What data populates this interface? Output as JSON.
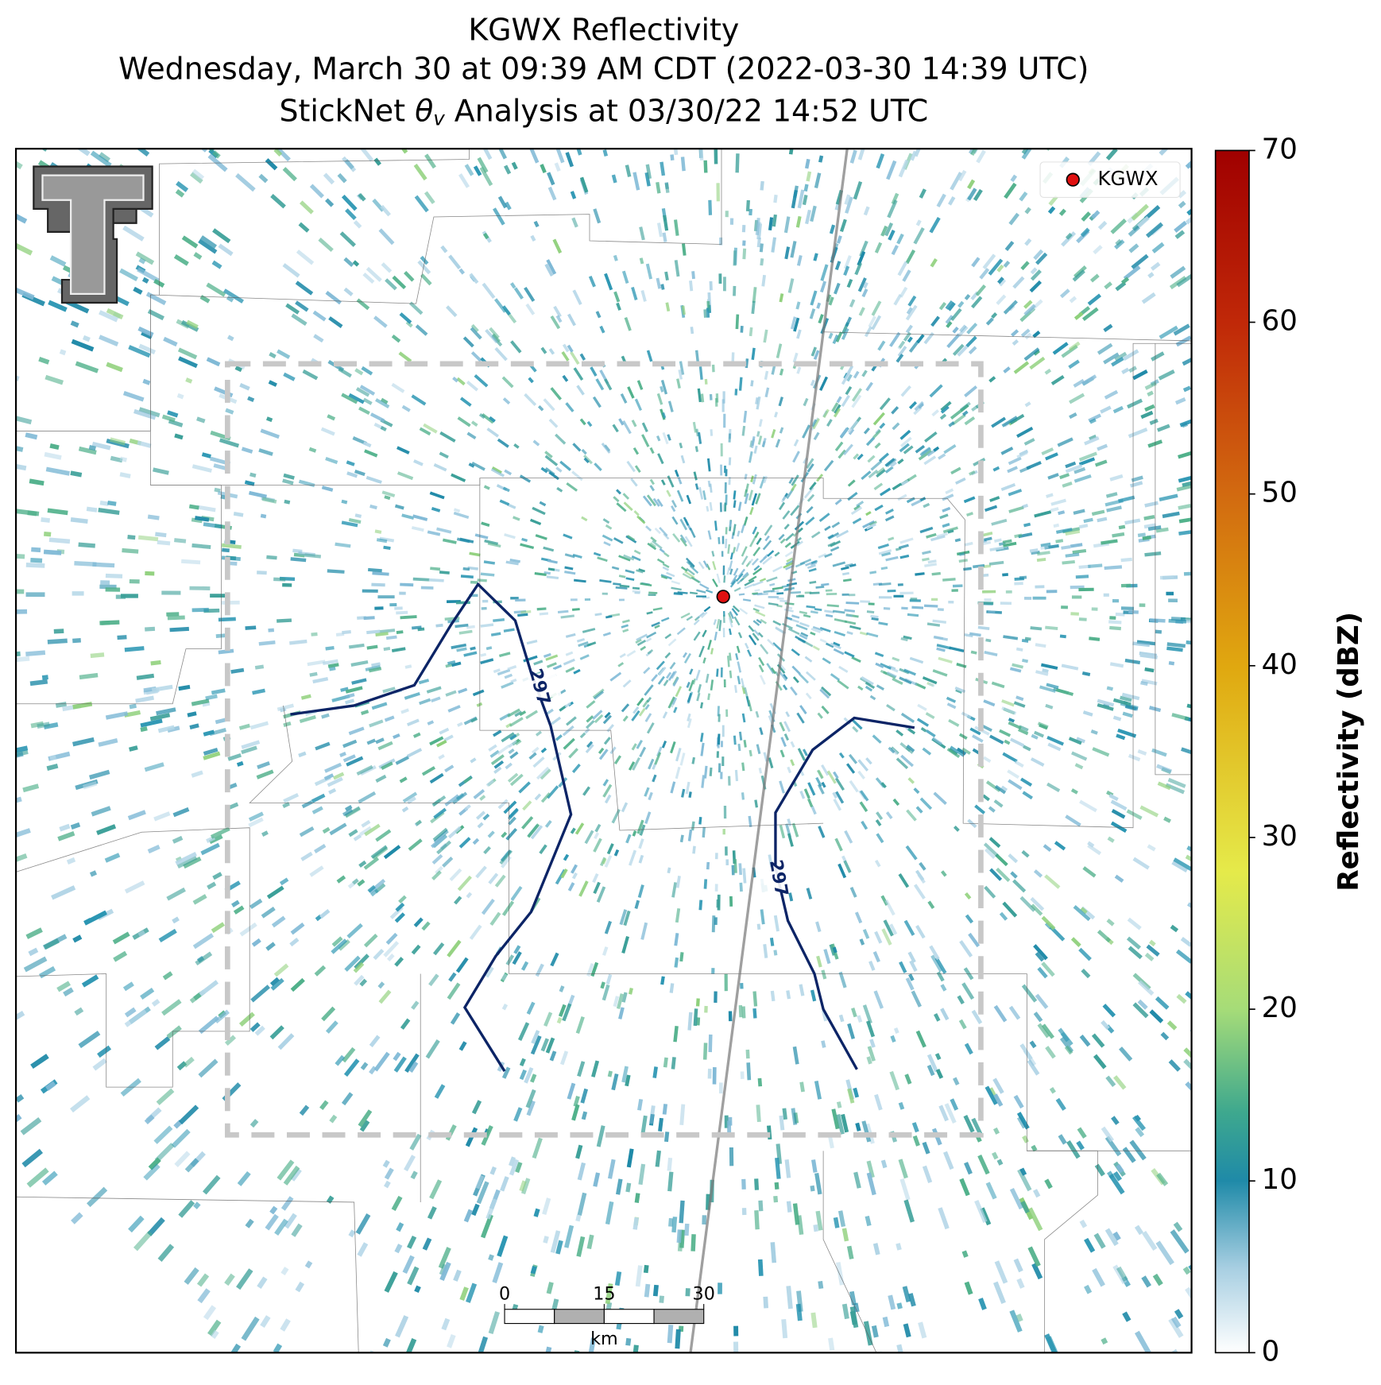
{
  "title": {
    "line1": "KGWX Reflectivity",
    "line2": "Wednesday, March 30 at 09:39 AM CDT (2022-03-30 14:39 UTC)",
    "line3": {
      "prefix": "StickNet",
      "symbol": "θ",
      "subscript": "v",
      "suffix": "Analysis at 03/30/22 14:52 UTC"
    }
  },
  "legend": {
    "label": "KGWX"
  },
  "contours": [
    {
      "label": "297"
    },
    {
      "label": "297"
    }
  ],
  "scale_bar": {
    "ticks": [
      0,
      15,
      30
    ],
    "unit": "km"
  },
  "colorbar": {
    "label": "Reflectivity (dBZ)",
    "lim": [
      0,
      70
    ],
    "ticks": [
      0,
      10,
      20,
      30,
      40,
      50,
      60,
      70
    ]
  }
}
